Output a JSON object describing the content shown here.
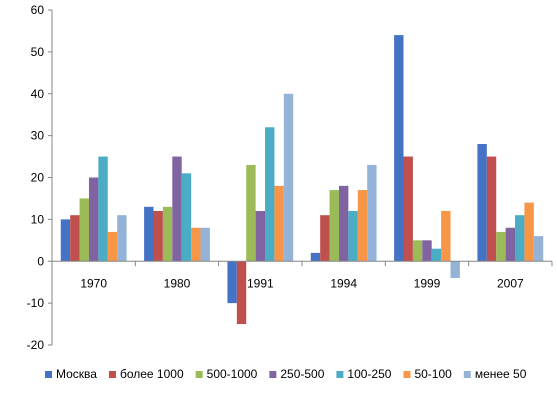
{
  "chart_data": {
    "type": "bar",
    "title": "",
    "xlabel": "",
    "ylabel": "",
    "categories": [
      "1970",
      "1980",
      "1991",
      "1994",
      "1999",
      "2007"
    ],
    "ylim": [
      -20,
      60
    ],
    "yticks": [
      -20,
      -10,
      0,
      10,
      20,
      30,
      40,
      50,
      60
    ],
    "grid": false,
    "legend_position": "bottom",
    "series": [
      {
        "name": "Москва",
        "color": "#4472C4",
        "values": [
          10,
          13,
          -10,
          2,
          54,
          28
        ]
      },
      {
        "name": "более 1000",
        "color": "#C0504D",
        "values": [
          11,
          12,
          -15,
          11,
          25,
          25
        ]
      },
      {
        "name": "500-1000",
        "color": "#9BBB59",
        "values": [
          15,
          13,
          23,
          17,
          5,
          7
        ]
      },
      {
        "name": "250-500",
        "color": "#8064A2",
        "values": [
          20,
          25,
          12,
          18,
          5,
          8
        ]
      },
      {
        "name": "100-250",
        "color": "#4BACC6",
        "values": [
          25,
          21,
          32,
          12,
          3,
          11
        ]
      },
      {
        "name": "50-100",
        "color": "#F79646",
        "values": [
          7,
          8,
          18,
          17,
          12,
          14
        ]
      },
      {
        "name": "менее 50",
        "color": "#95B3D7",
        "values": [
          11,
          8,
          40,
          23,
          -4,
          6
        ]
      }
    ]
  }
}
